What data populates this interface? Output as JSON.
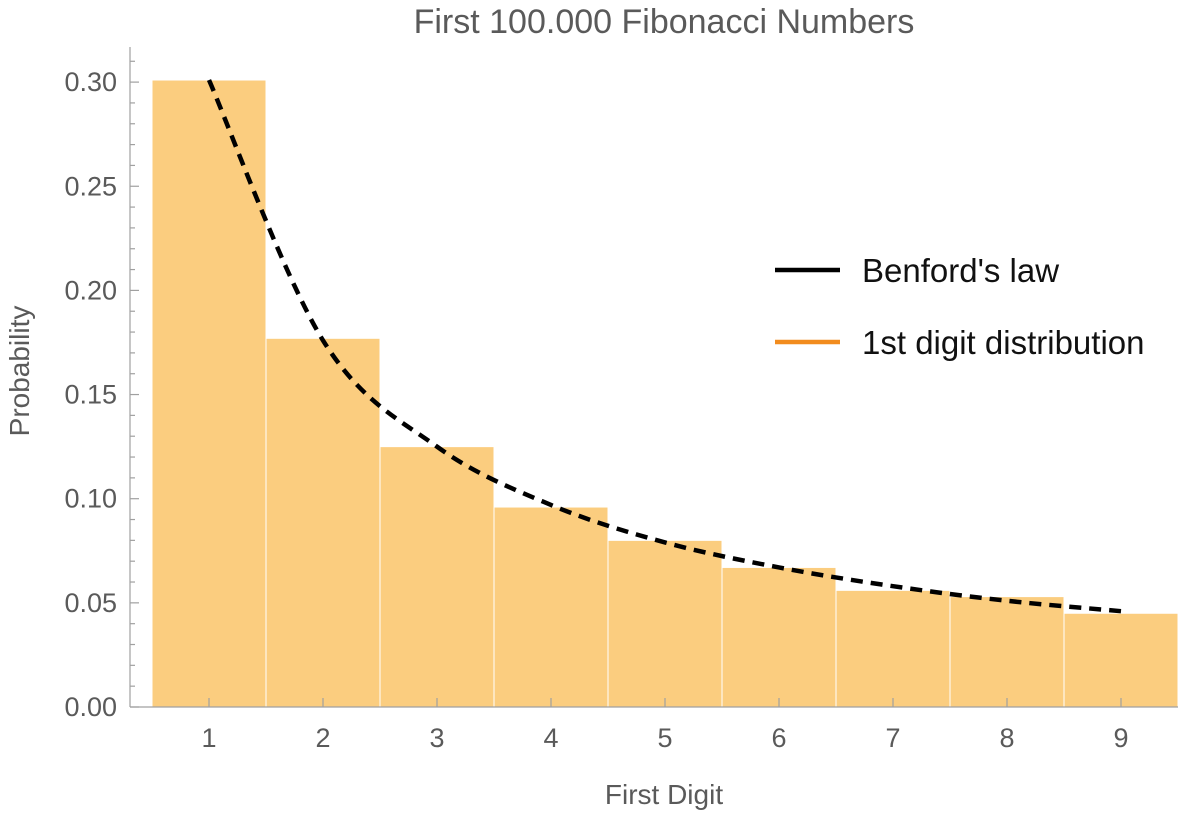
{
  "chart_data": {
    "type": "bar",
    "title": "First 100.000 Fibonacci Numbers",
    "xlabel": "First Digit",
    "ylabel": "Probability",
    "categories": [
      "1",
      "2",
      "3",
      "4",
      "5",
      "6",
      "7",
      "8",
      "9"
    ],
    "x_ticks": [
      "1",
      "2",
      "3",
      "4",
      "5",
      "6",
      "7",
      "8",
      "9"
    ],
    "y_ticks": [
      "0.00",
      "0.05",
      "0.10",
      "0.15",
      "0.20",
      "0.25",
      "0.30"
    ],
    "ylim": [
      0,
      0.31
    ],
    "xlim": [
      0.5,
      9.5
    ],
    "grid": false,
    "series": [
      {
        "name": "1st digit distribution",
        "type": "bar",
        "color": "#fbcd7f",
        "legend_color": "#f28c1e",
        "values": [
          0.301,
          0.177,
          0.125,
          0.096,
          0.08,
          0.067,
          0.056,
          0.053,
          0.045
        ]
      },
      {
        "name": "Benford's law",
        "type": "line",
        "style": "dashed",
        "color": "#000000",
        "x": [
          1,
          2,
          3,
          4,
          5,
          6,
          7,
          8,
          9
        ],
        "values": [
          0.301,
          0.176,
          0.125,
          0.097,
          0.079,
          0.067,
          0.058,
          0.051,
          0.046
        ]
      }
    ],
    "legend": {
      "placement": "right",
      "entries": [
        "Benford's law",
        "1st digit distribution"
      ]
    }
  }
}
